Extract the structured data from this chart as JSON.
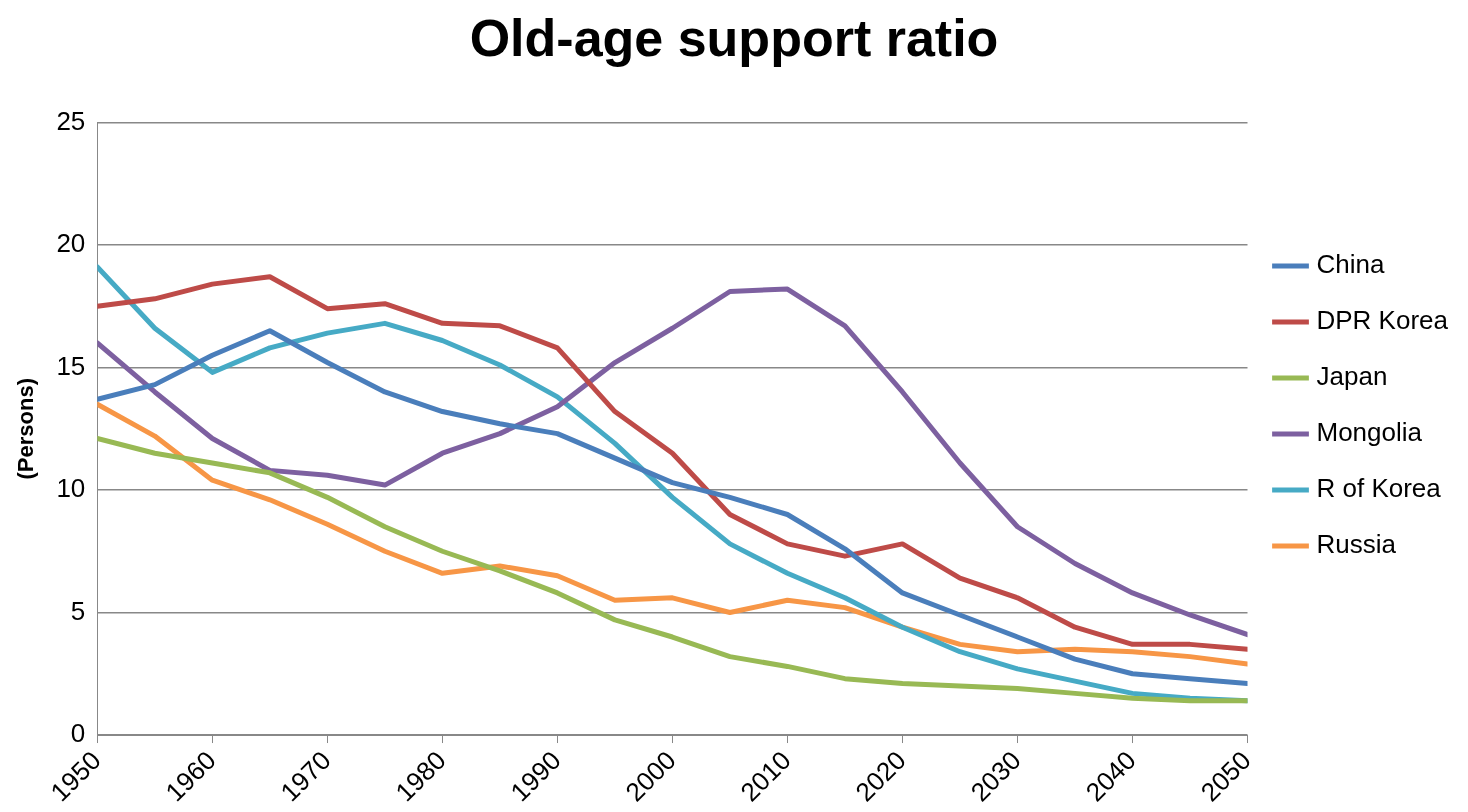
{
  "chart_data": {
    "type": "line",
    "title": "Old-age support ratio",
    "ylabel": "(Persons)",
    "x": [
      1950,
      1955,
      1960,
      1965,
      1970,
      1975,
      1980,
      1985,
      1990,
      1995,
      2000,
      2005,
      2010,
      2015,
      2020,
      2025,
      2030,
      2035,
      2040,
      2045,
      2050
    ],
    "xlim": [
      1950,
      2050
    ],
    "xticks": [
      1950,
      1960,
      1970,
      1980,
      1990,
      2000,
      2010,
      2020,
      2030,
      2040,
      2050
    ],
    "ylim": [
      0,
      25
    ],
    "yticks": [
      0,
      5,
      10,
      15,
      20,
      25
    ],
    "grid": "y",
    "legend": "right",
    "marker": "none",
    "line_style": "solid",
    "series": [
      {
        "name": "China",
        "color": "#4a7ebb",
        "values": [
          13.7,
          14.3,
          15.5,
          16.5,
          15.2,
          14.0,
          13.2,
          12.7,
          12.3,
          11.3,
          10.3,
          9.7,
          9.0,
          7.6,
          5.8,
          4.9,
          4.0,
          3.1,
          2.5,
          2.3,
          2.1
        ]
      },
      {
        "name": "DPR Korea",
        "color": "#be4b48",
        "values": [
          17.5,
          17.8,
          18.4,
          18.7,
          17.4,
          17.6,
          16.8,
          16.7,
          15.8,
          13.2,
          11.5,
          9.0,
          7.8,
          7.3,
          7.8,
          6.4,
          5.6,
          4.4,
          3.7,
          3.7,
          3.5
        ]
      },
      {
        "name": "Japan",
        "color": "#98b954",
        "values": [
          12.1,
          11.5,
          11.1,
          10.7,
          9.7,
          8.5,
          7.5,
          6.7,
          5.8,
          4.7,
          4.0,
          3.2,
          2.8,
          2.3,
          2.1,
          2.0,
          1.9,
          1.7,
          1.5,
          1.4,
          1.4
        ]
      },
      {
        "name": "Mongolia",
        "color": "#7d60a0",
        "values": [
          16.0,
          14.0,
          12.1,
          10.8,
          10.6,
          10.2,
          11.5,
          12.3,
          13.4,
          15.2,
          16.6,
          18.1,
          18.2,
          16.7,
          14.0,
          11.1,
          8.5,
          7.0,
          5.8,
          4.9,
          4.1
        ]
      },
      {
        "name": "R of Korea",
        "color": "#46aac5",
        "values": [
          19.1,
          16.6,
          14.8,
          15.8,
          16.4,
          16.8,
          16.1,
          15.1,
          13.8,
          11.9,
          9.7,
          7.8,
          6.6,
          5.6,
          4.4,
          3.4,
          2.7,
          2.2,
          1.7,
          1.5,
          1.4
        ]
      },
      {
        "name": "Russia",
        "color": "#f79646",
        "values": [
          13.5,
          12.2,
          10.4,
          9.6,
          8.6,
          7.5,
          6.6,
          6.9,
          6.5,
          5.5,
          5.6,
          5.0,
          5.5,
          5.2,
          4.4,
          3.7,
          3.4,
          3.5,
          3.4,
          3.2,
          2.9
        ]
      }
    ]
  }
}
